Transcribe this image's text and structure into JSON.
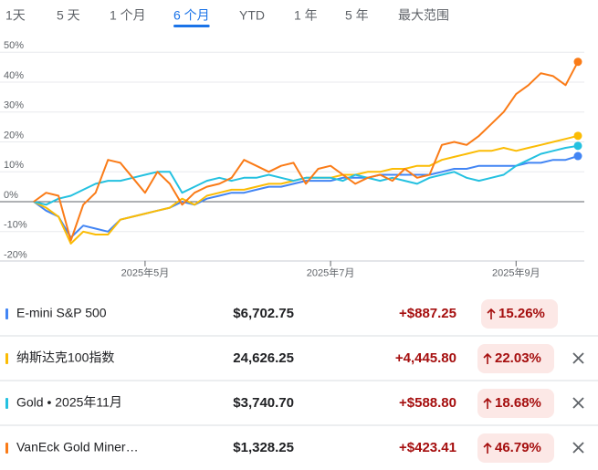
{
  "tabs": {
    "items": [
      "1天",
      "5 天",
      "1 个月",
      "6 个月",
      "YTD",
      "1 年",
      "5 年",
      "最大范围"
    ],
    "selected": 3
  },
  "chart_data": {
    "type": "line",
    "categories": [
      null,
      null,
      null,
      null,
      null,
      null,
      null,
      null,
      null,
      "2025年5月",
      null,
      null,
      null,
      null,
      null,
      null,
      null,
      null,
      null,
      null,
      null,
      null,
      null,
      null,
      "2025年7月",
      null,
      null,
      null,
      null,
      null,
      null,
      null,
      null,
      null,
      null,
      null,
      null,
      null,
      null,
      "2025年9月",
      null,
      null,
      null,
      null,
      null
    ],
    "ylim": [
      -21,
      53
    ],
    "yticks": [
      {
        "value": -20,
        "label": "-20%"
      },
      {
        "value": -10,
        "label": "-10%"
      },
      {
        "value": 0,
        "label": "0%"
      },
      {
        "value": 10,
        "label": "10%"
      },
      {
        "value": 20,
        "label": "20%"
      },
      {
        "value": 30,
        "label": "30%"
      },
      {
        "value": 40,
        "label": "40%"
      },
      {
        "value": 50,
        "label": "50%"
      }
    ],
    "grid": true,
    "series": [
      {
        "name": "E-mini S&P 500",
        "color": "#4285f4",
        "values": [
          0,
          -3,
          -5,
          -12,
          -8,
          -9,
          -10,
          -6,
          -5,
          -4,
          -3,
          -2,
          0,
          -1,
          1,
          2,
          3,
          3,
          4,
          5,
          5,
          6,
          7,
          7,
          7,
          8,
          8,
          8,
          9,
          9,
          9,
          9,
          9,
          10,
          11,
          11,
          12,
          12,
          12,
          12,
          13,
          13,
          14,
          14,
          15.26
        ]
      },
      {
        "name": "纳斯达克100指数",
        "color": "#fbbc04",
        "values": [
          0,
          -2,
          -5,
          -14,
          -10,
          -11,
          -11,
          -6,
          -5,
          -4,
          -3,
          -2,
          1,
          -1,
          2,
          3,
          4,
          4,
          5,
          6,
          6,
          7,
          8,
          8,
          8,
          9,
          9,
          10,
          10,
          11,
          11,
          12,
          12,
          14,
          15,
          16,
          17,
          17,
          18,
          17,
          18,
          19,
          20,
          21,
          22.03
        ]
      },
      {
        "name": "Gold • 2025年11月",
        "color": "#24c1e0",
        "values": [
          0,
          -1,
          1,
          2,
          4,
          6,
          7,
          7,
          8,
          9,
          10,
          10,
          3,
          5,
          7,
          8,
          7,
          8,
          8,
          9,
          8,
          7,
          8,
          8,
          8,
          7,
          9,
          8,
          7,
          8,
          7,
          6,
          8,
          9,
          10,
          8,
          7,
          8,
          9,
          12,
          14,
          16,
          17,
          18,
          18.68
        ]
      },
      {
        "name": "VanEck Gold Miner…",
        "color": "#fa7b17",
        "values": [
          0,
          3,
          2,
          -13,
          -1,
          3,
          14,
          13,
          8,
          3,
          10,
          6,
          -1,
          3,
          5,
          6,
          8,
          14,
          12,
          10,
          12,
          13,
          6,
          11,
          12,
          9,
          6,
          8,
          9,
          7,
          11,
          8,
          9,
          19,
          20,
          19,
          22,
          26,
          30,
          36,
          39,
          43,
          42,
          39,
          46.79
        ]
      }
    ]
  },
  "table": {
    "rows": [
      {
        "price": "$6,702.75",
        "change": "+$887.25",
        "percent": "15.26%",
        "closable": false
      },
      {
        "price": "24,626.25",
        "change": "+4,445.80",
        "percent": "22.03%",
        "closable": true
      },
      {
        "price": "$3,740.70",
        "change": "+$588.80",
        "percent": "18.68%",
        "closable": true
      },
      {
        "price": "$1,328.25",
        "change": "+$423.41",
        "percent": "46.79%",
        "closable": true
      }
    ]
  }
}
